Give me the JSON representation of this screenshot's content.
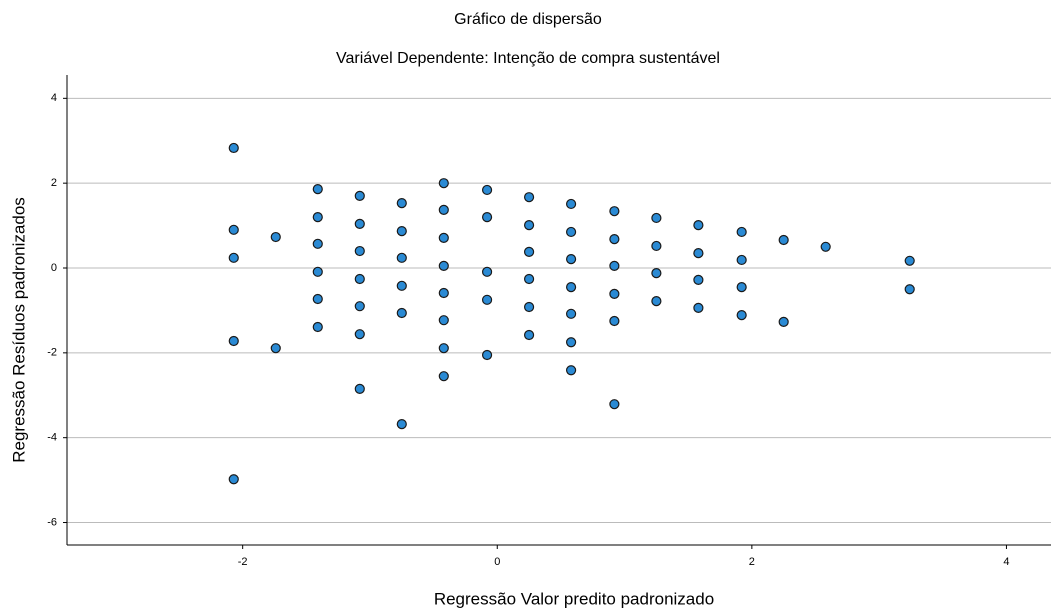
{
  "chart_data": {
    "type": "scatter",
    "title": "Gráfico de dispersão",
    "subtitle": "Variável Dependente: Intenção de compra sustentável",
    "x_label": "Regressão Valor predito padronizado",
    "y_label": "Regressão Resíduos padronizados",
    "color": "#2a8ad4",
    "edge_color": "#1a1a1a",
    "grid": true,
    "xlim": [
      -3.38,
      4.35
    ],
    "xticks": [
      -2,
      0,
      2,
      4
    ],
    "ylim": [
      -6.53,
      4.55
    ],
    "yticks": [
      -6,
      -4,
      -2,
      0,
      2,
      4
    ],
    "x": [
      -2.07,
      -2.07,
      -2.07,
      -2.07,
      -2.07,
      -1.74,
      -1.74,
      -1.41,
      -1.41,
      -1.41,
      -1.41,
      -1.41,
      -1.41,
      -1.08,
      -1.08,
      -1.08,
      -1.08,
      -1.08,
      -1.08,
      -1.08,
      -0.75,
      -0.75,
      -0.75,
      -0.75,
      -0.75,
      -0.75,
      -0.42,
      -0.42,
      -0.42,
      -0.42,
      -0.42,
      -0.42,
      -0.42,
      -0.42,
      -0.08,
      -0.08,
      -0.08,
      -0.08,
      -0.08,
      0.25,
      0.25,
      0.25,
      0.25,
      0.25,
      0.25,
      0.58,
      0.58,
      0.58,
      0.58,
      0.58,
      0.58,
      0.58,
      0.92,
      0.92,
      0.92,
      0.92,
      0.92,
      0.92,
      1.25,
      1.25,
      1.25,
      1.25,
      1.58,
      1.58,
      1.58,
      1.58,
      1.92,
      1.92,
      1.92,
      1.92,
      2.25,
      2.25,
      2.58,
      3.24,
      3.24
    ],
    "values": [
      2.83,
      0.9,
      0.24,
      -1.72,
      -4.98,
      0.73,
      -1.89,
      1.86,
      1.2,
      0.57,
      -0.09,
      -0.73,
      -1.39,
      1.7,
      1.04,
      0.4,
      -0.26,
      -0.9,
      -1.56,
      -2.85,
      1.53,
      0.87,
      0.24,
      -0.42,
      -1.06,
      -3.68,
      2.0,
      1.37,
      0.71,
      0.05,
      -0.59,
      -1.23,
      -1.89,
      -2.55,
      1.84,
      1.2,
      -0.09,
      -0.75,
      -2.05,
      1.67,
      1.01,
      0.38,
      -0.26,
      -0.92,
      -1.58,
      1.51,
      0.85,
      0.21,
      -0.45,
      -1.08,
      -1.75,
      -2.41,
      1.34,
      0.68,
      0.05,
      -0.61,
      -1.25,
      -3.21,
      1.18,
      0.52,
      -0.12,
      -0.78,
      1.01,
      0.35,
      -0.28,
      -0.94,
      0.85,
      0.19,
      -0.45,
      -1.11,
      0.66,
      -1.27,
      0.5,
      0.17,
      -0.5
    ]
  }
}
